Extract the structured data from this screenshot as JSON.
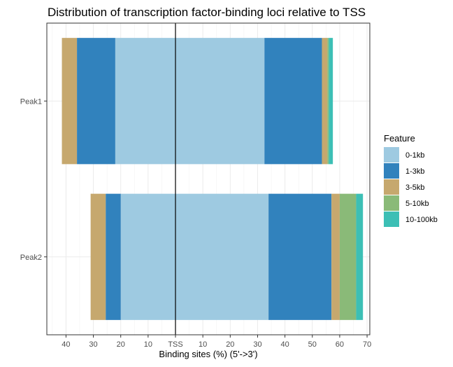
{
  "chart_data": {
    "type": "bar",
    "orientation": "horizontal",
    "stacked": "diverging",
    "title": "Distribution of transcription factor-binding loci relative to TSS",
    "xlabel": "Binding sites (%) (5'->3')",
    "ylabel": "",
    "xlim": [
      -47,
      71
    ],
    "x_ticks": [
      -40,
      -30,
      -20,
      -10,
      0,
      10,
      20,
      30,
      40,
      50,
      60,
      70
    ],
    "x_tick_labels": [
      "40",
      "30",
      "20",
      "10",
      "TSS",
      "10",
      "20",
      "30",
      "40",
      "50",
      "60",
      "70"
    ],
    "categories": [
      "Peak1",
      "Peak2"
    ],
    "legend_title": "Feature",
    "legend_position": "right",
    "grid": true,
    "series": [
      {
        "name": "0-1kb",
        "color": "#9ecae1",
        "upstream": [
          22.0,
          20.0
        ],
        "downstream": [
          32.5,
          34.0
        ]
      },
      {
        "name": "1-3kb",
        "color": "#3182bd",
        "upstream": [
          14.0,
          5.5
        ],
        "downstream": [
          21.0,
          23.0
        ]
      },
      {
        "name": "3-5kb",
        "color": "#c6a86e",
        "upstream": [
          5.5,
          5.5
        ],
        "downstream": [
          2.0,
          3.0
        ]
      },
      {
        "name": "5-10kb",
        "color": "#8aba78",
        "upstream": [
          0.0,
          0.0
        ],
        "downstream": [
          0.5,
          6.0
        ]
      },
      {
        "name": "10-100kb",
        "color": "#3cbfb5",
        "upstream": [
          0.0,
          0.0
        ],
        "downstream": [
          1.5,
          2.5
        ]
      }
    ]
  }
}
